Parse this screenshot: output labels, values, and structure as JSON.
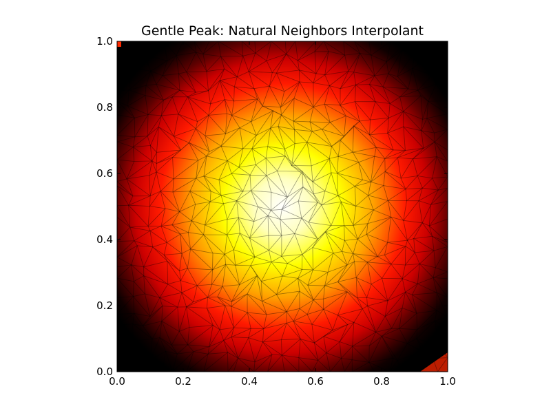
{
  "chart_data": {
    "type": "heatmap",
    "title": "Gentle Peak: Natural Neighbors Interpolant",
    "xlabel": "",
    "ylabel": "",
    "xlim": [
      0.0,
      1.0
    ],
    "ylim": [
      0.0,
      1.0
    ],
    "x_ticks": [
      0.0,
      0.2,
      0.4,
      0.6,
      0.8,
      1.0
    ],
    "y_ticks": [
      0.0,
      0.2,
      0.4,
      0.6,
      0.8,
      1.0
    ],
    "x_tick_labels": [
      "0.0",
      "0.2",
      "0.4",
      "0.6",
      "0.8",
      "1.0"
    ],
    "y_tick_labels": [
      "0.0",
      "0.2",
      "0.4",
      "0.6",
      "0.8",
      "1.0"
    ],
    "peak_center": [
      0.5,
      0.5
    ],
    "colormap": [
      "#000000",
      "#ff0000",
      "#ffff00",
      "#ffffff"
    ],
    "triangulation_overlay": true,
    "triangulation_color": "#000000",
    "grid": false,
    "legend": "none"
  }
}
